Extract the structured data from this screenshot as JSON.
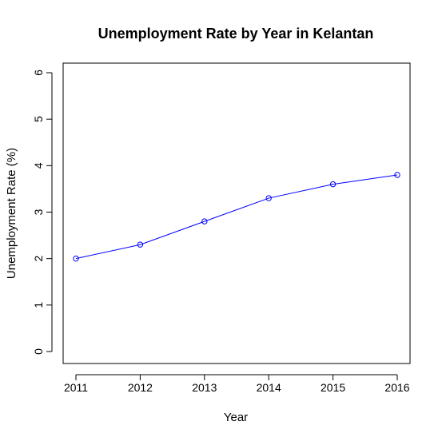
{
  "chart_data": {
    "type": "line",
    "title": "Unemployment Rate by Year in Kelantan",
    "xlabel": "Year",
    "ylabel": "Unemployment Rate (%)",
    "x": [
      2011,
      2012,
      2013,
      2014,
      2015,
      2016
    ],
    "series": [
      {
        "values": [
          2.0,
          2.3,
          2.8,
          3.3,
          3.6,
          3.8
        ],
        "color": "#0000ff"
      }
    ],
    "xlim": [
      2011,
      2016
    ],
    "ylim": [
      0,
      6
    ],
    "x_ticks": [
      "2011",
      "2012",
      "2013",
      "2014",
      "2015",
      "2016"
    ],
    "y_ticks": [
      "0",
      "1",
      "2",
      "3",
      "4",
      "5",
      "6"
    ],
    "grid": false,
    "markers": "open-circle"
  }
}
